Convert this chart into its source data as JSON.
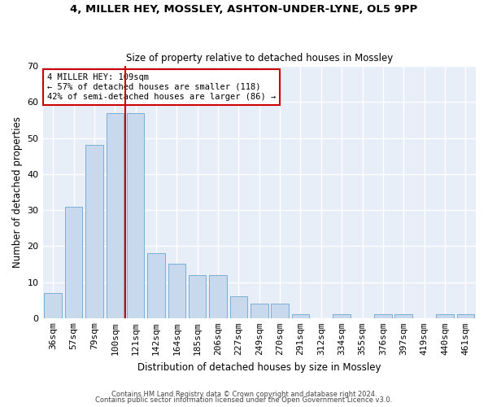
{
  "title1": "4, MILLER HEY, MOSSLEY, ASHTON-UNDER-LYNE, OL5 9PP",
  "title2": "Size of property relative to detached houses in Mossley",
  "xlabel": "Distribution of detached houses by size in Mossley",
  "ylabel": "Number of detached properties",
  "categories": [
    "36sqm",
    "57sqm",
    "79sqm",
    "100sqm",
    "121sqm",
    "142sqm",
    "164sqm",
    "185sqm",
    "206sqm",
    "227sqm",
    "249sqm",
    "270sqm",
    "291sqm",
    "312sqm",
    "334sqm",
    "355sqm",
    "376sqm",
    "397sqm",
    "419sqm",
    "440sqm",
    "461sqm"
  ],
  "values": [
    7,
    31,
    48,
    57,
    57,
    18,
    15,
    12,
    12,
    6,
    4,
    4,
    1,
    0,
    1,
    0,
    1,
    1,
    0,
    1,
    1
  ],
  "bar_color": "#c8d9ee",
  "bar_edge_color": "#7badd4",
  "vline_x": 3.5,
  "vline_color": "#cc0000",
  "annotation_line1": "4 MILLER HEY: 109sqm",
  "annotation_line2": "← 57% of detached houses are smaller (118)",
  "annotation_line3": "42% of semi-detached houses are larger (86) →",
  "annotation_box_color": "#cc0000",
  "ylim": [
    0,
    70
  ],
  "yticks": [
    0,
    10,
    20,
    30,
    40,
    50,
    60,
    70
  ],
  "footer1": "Contains HM Land Registry data © Crown copyright and database right 2024.",
  "footer2": "Contains public sector information licensed under the Open Government Licence v3.0.",
  "bg_color": "#e8eef8"
}
